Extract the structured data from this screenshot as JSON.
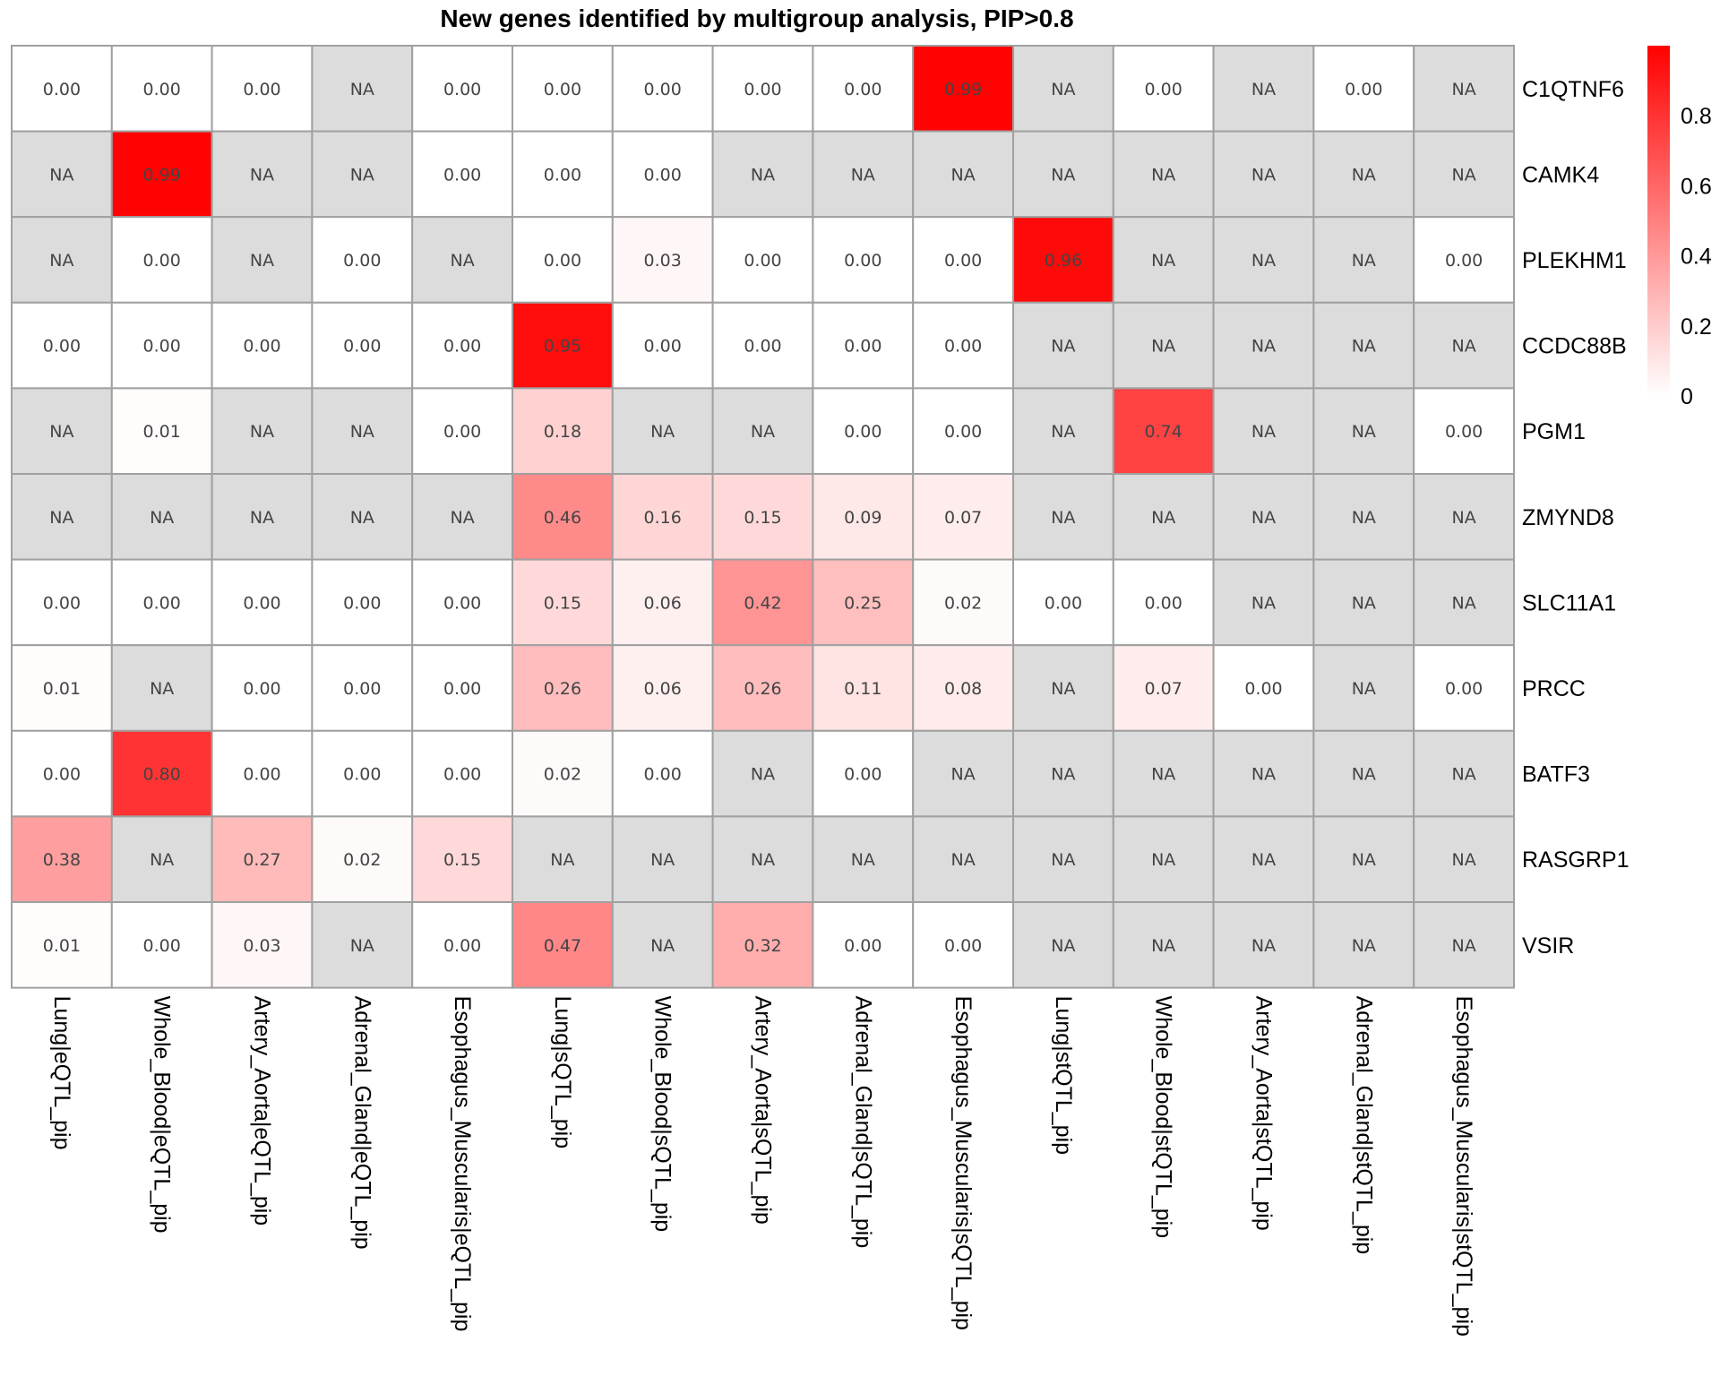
{
  "chart_data": {
    "type": "heatmap",
    "title": "New genes identified by multigroup analysis, PIP>0.8",
    "rows": [
      "C1QTNF6",
      "CAMK4",
      "PLEKHM1",
      "CCDC88B",
      "PGM1",
      "ZMYND8",
      "SLC11A1",
      "PRCC",
      "BATF3",
      "RASGRP1",
      "VSIR"
    ],
    "columns": [
      "Lung|eQTL_pip",
      "Whole_Blood|eQTL_pip",
      "Artery_Aorta|eQTL_pip",
      "Adrenal_Gland|eQTL_pip",
      "Esophagus_Muscularis|eQTL_pip",
      "Lung|sQTL_pip",
      "Whole_Blood|sQTL_pip",
      "Artery_Aorta|sQTL_pip",
      "Adrenal_Gland|sQTL_pip",
      "Esophagus_Muscularis|sQTL_pip",
      "Lung|stQTL_pip",
      "Whole_Blood|stQTL_pip",
      "Artery_Aorta|stQTL_pip",
      "Adrenal_Gland|stQTL_pip",
      "Esophagus_Muscularis|stQTL_pip"
    ],
    "values": [
      [
        0.0,
        0.0,
        0.0,
        null,
        0.0,
        0.0,
        0.0,
        0.0,
        0.0,
        0.99,
        null,
        0.0,
        null,
        0.0,
        null
      ],
      [
        null,
        0.99,
        null,
        null,
        0.0,
        0.0,
        0.0,
        null,
        null,
        null,
        null,
        null,
        null,
        null,
        null
      ],
      [
        null,
        0.0,
        null,
        0.0,
        null,
        0.0,
        0.03,
        0.0,
        0.0,
        0.0,
        0.96,
        null,
        null,
        null,
        0.0
      ],
      [
        0.0,
        0.0,
        0.0,
        0.0,
        0.0,
        0.95,
        0.0,
        0.0,
        0.0,
        0.0,
        null,
        null,
        null,
        null,
        null
      ],
      [
        null,
        0.01,
        null,
        null,
        0.0,
        0.18,
        null,
        null,
        0.0,
        0.0,
        null,
        0.74,
        null,
        null,
        0.0
      ],
      [
        null,
        null,
        null,
        null,
        null,
        0.46,
        0.16,
        0.15,
        0.09,
        0.07,
        null,
        null,
        null,
        null,
        null
      ],
      [
        0.0,
        0.0,
        0.0,
        0.0,
        0.0,
        0.15,
        0.06,
        0.42,
        0.25,
        0.02,
        0.0,
        0.0,
        null,
        null,
        null
      ],
      [
        0.01,
        null,
        0.0,
        0.0,
        0.0,
        0.26,
        0.06,
        0.26,
        0.11,
        0.08,
        null,
        0.07,
        0.0,
        null,
        0.0
      ],
      [
        0.0,
        0.8,
        0.0,
        0.0,
        0.0,
        0.02,
        0.0,
        null,
        0.0,
        null,
        null,
        null,
        null,
        null,
        null
      ],
      [
        0.38,
        null,
        0.27,
        0.02,
        0.15,
        null,
        null,
        null,
        null,
        null,
        null,
        null,
        null,
        null,
        null
      ],
      [
        0.01,
        0.0,
        0.03,
        null,
        0.0,
        0.47,
        null,
        0.32,
        0.0,
        0.0,
        null,
        null,
        null,
        null,
        null
      ]
    ],
    "na_label": "NA",
    "color_scale": {
      "low": "#ffffff",
      "high": "#ff0000",
      "na": "#dcdcdc",
      "border": "#a0a0a0"
    },
    "legend": {
      "ticks": [
        "0",
        "0.2",
        "0.4",
        "0.6",
        "0.8"
      ],
      "tick_values": [
        0,
        0.2,
        0.4,
        0.6,
        0.8
      ],
      "range": [
        0,
        1
      ],
      "placement": "top-right"
    }
  }
}
